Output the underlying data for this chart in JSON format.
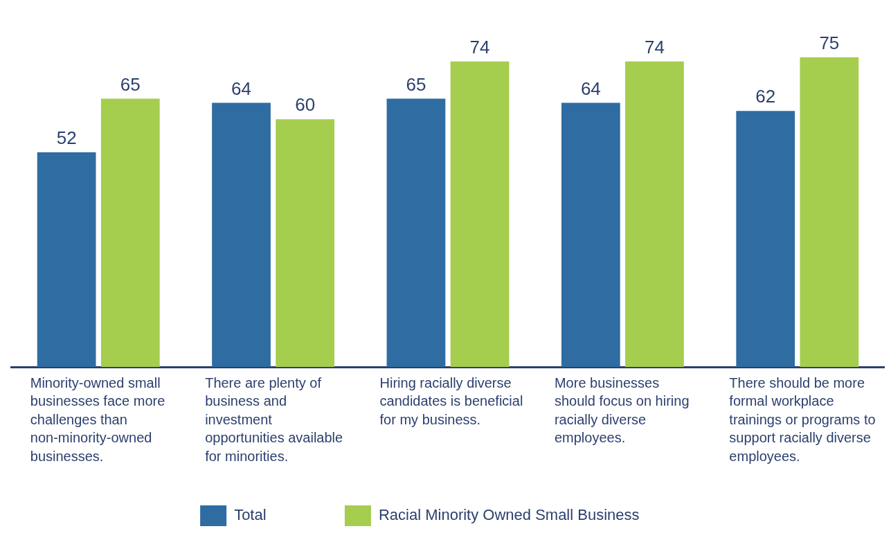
{
  "chart_data": {
    "type": "bar",
    "categories": [
      "Minority-owned small businesses face more challenges than non-minority-owned businesses.",
      "There are plenty of business and investment opportunities available for minorities.",
      "Hiring racially diverse candidates is beneficial for my business.",
      "More businesses should focus on hiring racially diverse employees.",
      "There should be more formal workplace trainings or programs to support racially diverse employees."
    ],
    "series": [
      {
        "name": "Total",
        "color": "#2e6ca2",
        "values": [
          52,
          64,
          65,
          64,
          62
        ]
      },
      {
        "name": "Racial Minority Owned Small Business",
        "color": "#a5cd4e",
        "values": [
          65,
          60,
          74,
          74,
          75
        ]
      }
    ],
    "data_labels": true,
    "legend": "bottom",
    "grid": false
  }
}
